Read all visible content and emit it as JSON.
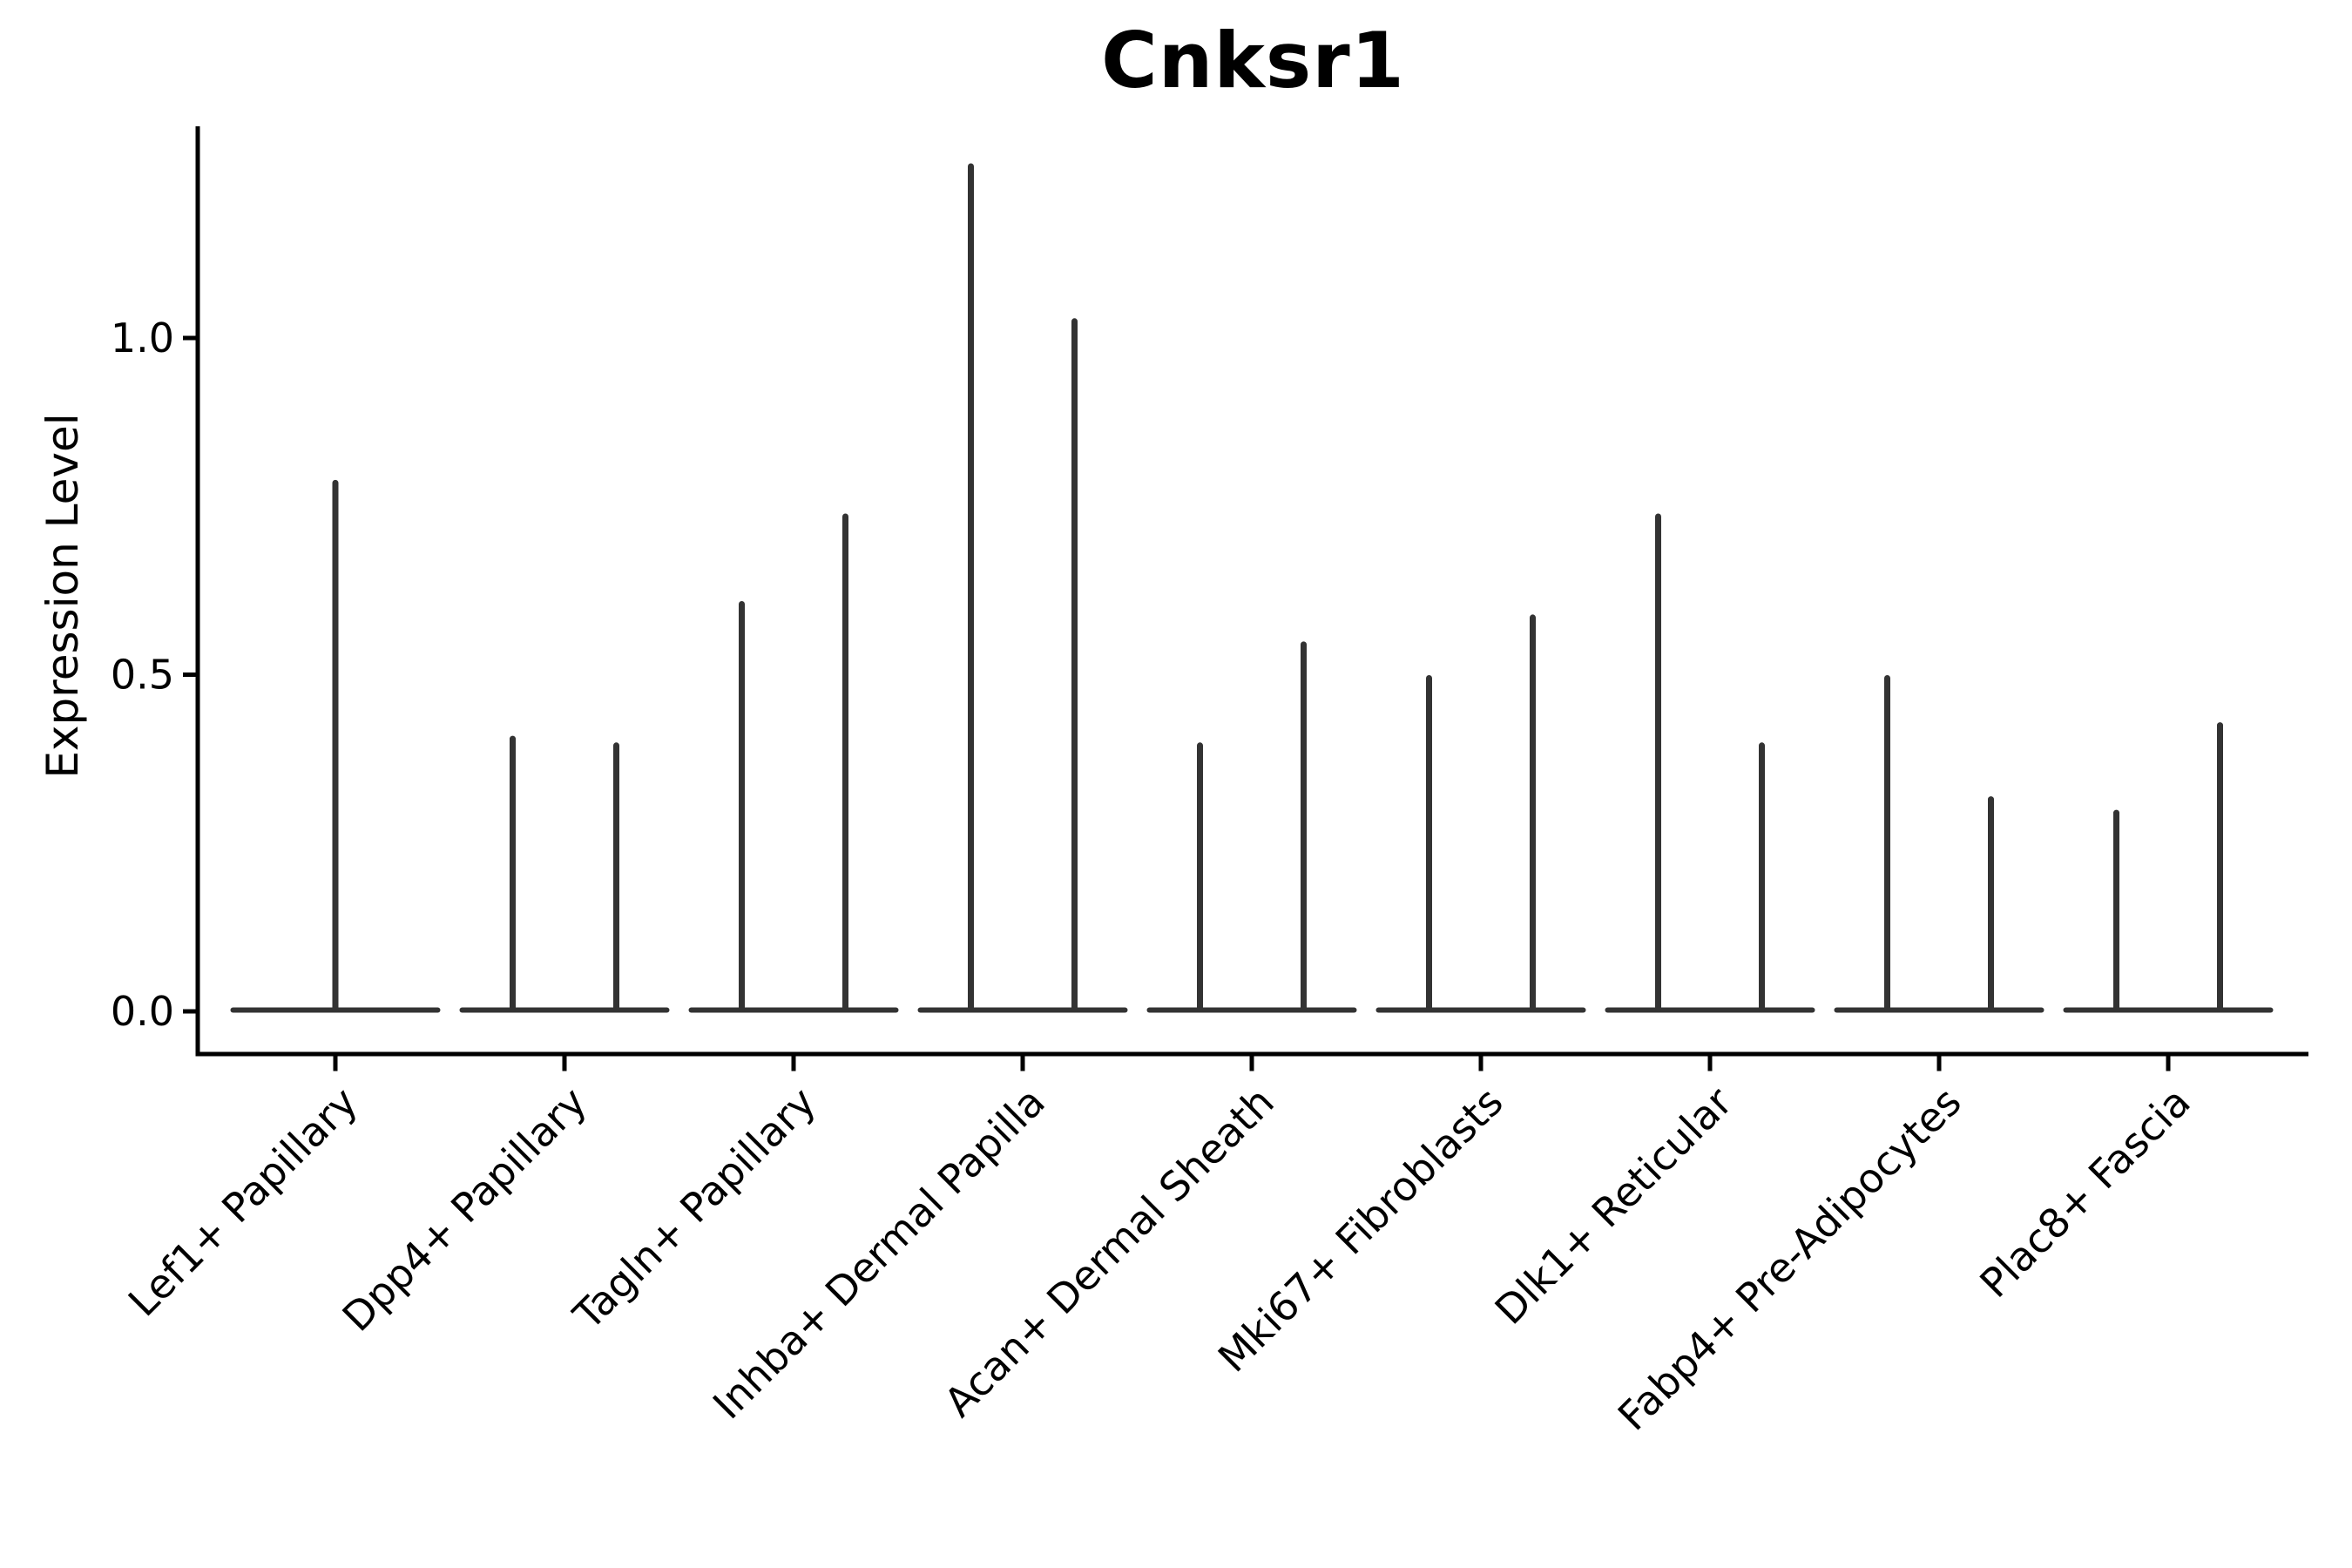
{
  "title": "Cnksr1",
  "ylabel": "Expression Level",
  "chart_data": {
    "type": "violin",
    "title": "Cnksr1",
    "xlabel": "",
    "ylabel": "Expression Level",
    "ylim": [
      -0.07,
      1.31
    ],
    "yticks": [
      0.0,
      0.5,
      1.0
    ],
    "ytick_labels": [
      "0.0",
      "0.5",
      "1.0"
    ],
    "grid": false,
    "legend": "none",
    "baseline_value": 0.0,
    "categories": [
      "Lef1+ Papillary",
      "Dpp4+ Papillary",
      "Tagln+ Papillary",
      "Inhba+ Dermal Papilla",
      "Acan+ Dermal Sheath",
      "Mki67+ Fibroblasts",
      "Dlk1+ Reticular",
      "Fabp4+ Pre-Adipocytes",
      "Plac8+ Fascia"
    ],
    "groups": [
      {
        "label": "Lef1+ Papillary",
        "violin_maxima": [
          0.79
        ]
      },
      {
        "label": "Dpp4+ Papillary",
        "violin_maxima": [
          0.41,
          0.4
        ]
      },
      {
        "label": "Tagln+ Papillary",
        "violin_maxima": [
          0.61,
          0.74
        ]
      },
      {
        "label": "Inhba+ Dermal Papilla",
        "violin_maxima": [
          1.26,
          1.03
        ]
      },
      {
        "label": "Acan+ Dermal Sheath",
        "violin_maxima": [
          0.4,
          0.55
        ]
      },
      {
        "label": "Mki67+ Fibroblasts",
        "violin_maxima": [
          0.5,
          0.59
        ]
      },
      {
        "label": "Dlk1+ Reticular",
        "violin_maxima": [
          0.74,
          0.4
        ]
      },
      {
        "label": "Fabp4+ Pre-Adipocytes",
        "violin_maxima": [
          0.5,
          0.32
        ]
      },
      {
        "label": "Plac8+ Fascia",
        "violin_maxima": [
          0.3,
          0.43
        ]
      }
    ],
    "colors": {
      "violin_stroke": "#333333",
      "axis": "#000000",
      "background": "#ffffff"
    }
  }
}
